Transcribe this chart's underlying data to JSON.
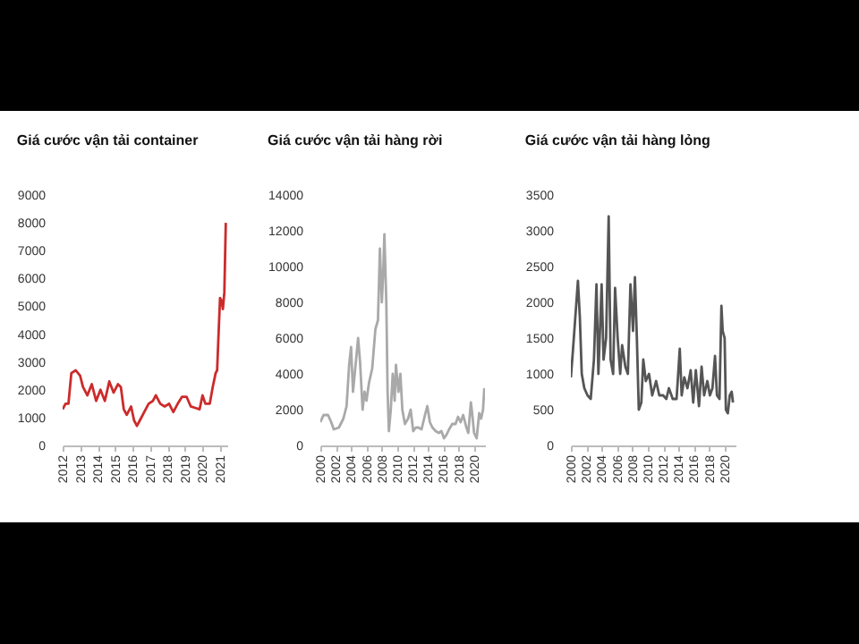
{
  "chart_data": [
    {
      "type": "line",
      "title": "Giá cước vận tải container",
      "series": [
        {
          "color": "#cc2b2b",
          "x": [
            "2012-01",
            "2012-03",
            "2012-05",
            "2012-07",
            "2012-10",
            "2013-01",
            "2013-03",
            "2013-06",
            "2013-09",
            "2013-12",
            "2014-03",
            "2014-06",
            "2014-09",
            "2014-12",
            "2015-03",
            "2015-05",
            "2015-07",
            "2015-09",
            "2015-12",
            "2016-02",
            "2016-04",
            "2016-06",
            "2016-09",
            "2016-12",
            "2017-03",
            "2017-05",
            "2017-08",
            "2017-11",
            "2018-02",
            "2018-05",
            "2018-08",
            "2018-11",
            "2019-02",
            "2019-05",
            "2019-08",
            "2019-11",
            "2020-01",
            "2020-03",
            "2020-06",
            "2020-08",
            "2020-10",
            "2020-11",
            "2020-12",
            "2021-01",
            "2021-02",
            "2021-03",
            "2021-04",
            "2021-05"
          ],
          "values": [
            1300,
            1500,
            1500,
            2600,
            2700,
            2500,
            2100,
            1800,
            2200,
            1600,
            2000,
            1600,
            2300,
            1900,
            2200,
            2100,
            1300,
            1100,
            1400,
            900,
            700,
            900,
            1200,
            1500,
            1600,
            1800,
            1500,
            1400,
            1500,
            1200,
            1500,
            1750,
            1750,
            1400,
            1350,
            1300,
            1800,
            1500,
            1500,
            2100,
            2600,
            2700,
            4000,
            5300,
            5200,
            4900,
            5500,
            8000
          ]
        }
      ],
      "xlim": [
        "2012-01",
        "2021-06"
      ],
      "xticks": [
        "2012",
        "2013",
        "2014",
        "2015",
        "2016",
        "2017",
        "2018",
        "2019",
        "2020",
        "2021"
      ],
      "ylim": [
        0,
        9000
      ],
      "yticks": [
        0,
        1000,
        2000,
        3000,
        4000,
        5000,
        6000,
        7000,
        8000,
        9000
      ],
      "grid": false,
      "legend": false
    },
    {
      "type": "line",
      "title": "Giá cước vận tải hàng rời",
      "series": [
        {
          "color": "#a9a9a9",
          "x": [
            "2000-01",
            "2000-06",
            "2001-01",
            "2001-06",
            "2001-10",
            "2002-06",
            "2003-01",
            "2003-06",
            "2003-10",
            "2004-01",
            "2004-04",
            "2004-08",
            "2004-12",
            "2005-03",
            "2005-07",
            "2005-10",
            "2006-01",
            "2006-05",
            "2006-10",
            "2007-03",
            "2007-07",
            "2007-10",
            "2008-01",
            "2008-03",
            "2008-05",
            "2008-08",
            "2008-10",
            "2008-12",
            "2009-03",
            "2009-06",
            "2009-09",
            "2009-11",
            "2010-03",
            "2010-06",
            "2010-09",
            "2011-01",
            "2011-06",
            "2011-10",
            "2012-02",
            "2012-06",
            "2012-10",
            "2013-03",
            "2013-09",
            "2013-12",
            "2014-04",
            "2014-08",
            "2015-01",
            "2015-06",
            "2015-10",
            "2016-02",
            "2016-06",
            "2016-10",
            "2017-03",
            "2017-08",
            "2017-12",
            "2018-04",
            "2018-08",
            "2019-01",
            "2019-04",
            "2019-08",
            "2019-10",
            "2020-01",
            "2020-05",
            "2020-09",
            "2020-12",
            "2021-03",
            "2021-05"
          ],
          "values": [
            1300,
            1700,
            1700,
            1300,
            900,
            1000,
            1500,
            2200,
            4500,
            5500,
            3000,
            4500,
            6000,
            4700,
            2000,
            3000,
            2500,
            3500,
            4300,
            6500,
            7000,
            11000,
            8000,
            9500,
            11800,
            8000,
            3000,
            800,
            2000,
            4000,
            2500,
            4500,
            3000,
            4000,
            2000,
            1200,
            1500,
            2000,
            800,
            1000,
            1000,
            900,
            1800,
            2200,
            1300,
            1000,
            800,
            700,
            800,
            400,
            600,
            900,
            1200,
            1200,
            1600,
            1300,
            1700,
            1000,
            700,
            2400,
            1800,
            700,
            400,
            1800,
            1500,
            2000,
            3200
          ]
        }
      ],
      "xlim": [
        "2000-01",
        "2021-06"
      ],
      "xticks": [
        "2000",
        "2002",
        "2004",
        "2006",
        "2008",
        "2010",
        "2012",
        "2014",
        "2016",
        "2018",
        "2020"
      ],
      "ylim": [
        0,
        14000
      ],
      "yticks": [
        0,
        2000,
        4000,
        6000,
        8000,
        10000,
        12000,
        14000
      ],
      "grid": false,
      "legend": false
    },
    {
      "type": "line",
      "title": "Giá cước vận tải hàng lỏng",
      "series": [
        {
          "color": "#555555",
          "x": [
            "2000-01",
            "2000-04",
            "2000-08",
            "2000-12",
            "2001-03",
            "2001-06",
            "2001-10",
            "2002-03",
            "2002-08",
            "2003-01",
            "2003-05",
            "2003-08",
            "2004-01",
            "2004-04",
            "2004-08",
            "2004-12",
            "2005-03",
            "2005-07",
            "2005-10",
            "2006-02",
            "2006-06",
            "2006-09",
            "2007-02",
            "2007-06",
            "2007-10",
            "2008-02",
            "2008-05",
            "2008-08",
            "2008-11",
            "2009-03",
            "2009-06",
            "2009-10",
            "2010-03",
            "2010-08",
            "2011-02",
            "2011-07",
            "2012-01",
            "2012-06",
            "2012-10",
            "2013-04",
            "2013-10",
            "2014-03",
            "2014-06",
            "2014-10",
            "2015-03",
            "2015-08",
            "2015-12",
            "2016-04",
            "2016-09",
            "2017-01",
            "2017-05",
            "2017-10",
            "2018-02",
            "2018-06",
            "2018-10",
            "2019-01",
            "2019-05",
            "2019-08",
            "2019-10",
            "2020-01",
            "2020-03",
            "2020-06",
            "2020-09",
            "2020-12",
            "2021-02"
          ],
          "values": [
            950,
            1300,
            1800,
            2300,
            1800,
            1000,
            800,
            700,
            650,
            1200,
            2250,
            1000,
            2250,
            1200,
            1500,
            3200,
            1200,
            1000,
            2200,
            1500,
            1000,
            1400,
            1100,
            1000,
            2250,
            1600,
            2350,
            1500,
            500,
            600,
            1200,
            900,
            1000,
            700,
            900,
            700,
            700,
            650,
            800,
            650,
            650,
            1350,
            700,
            950,
            800,
            1050,
            600,
            1050,
            550,
            1100,
            700,
            900,
            700,
            800,
            1250,
            700,
            650,
            1950,
            1600,
            1500,
            500,
            450,
            700,
            750,
            600
          ]
        }
      ],
      "xlim": [
        "2000-01",
        "2021-06"
      ],
      "xticks": [
        "2000",
        "2002",
        "2004",
        "2006",
        "2008",
        "2010",
        "2012",
        "2014",
        "2016",
        "2018",
        "2020"
      ],
      "ylim": [
        0,
        3500
      ],
      "yticks": [
        0,
        500,
        1000,
        1500,
        2000,
        2500,
        3000,
        3500
      ],
      "grid": false,
      "legend": false
    }
  ]
}
